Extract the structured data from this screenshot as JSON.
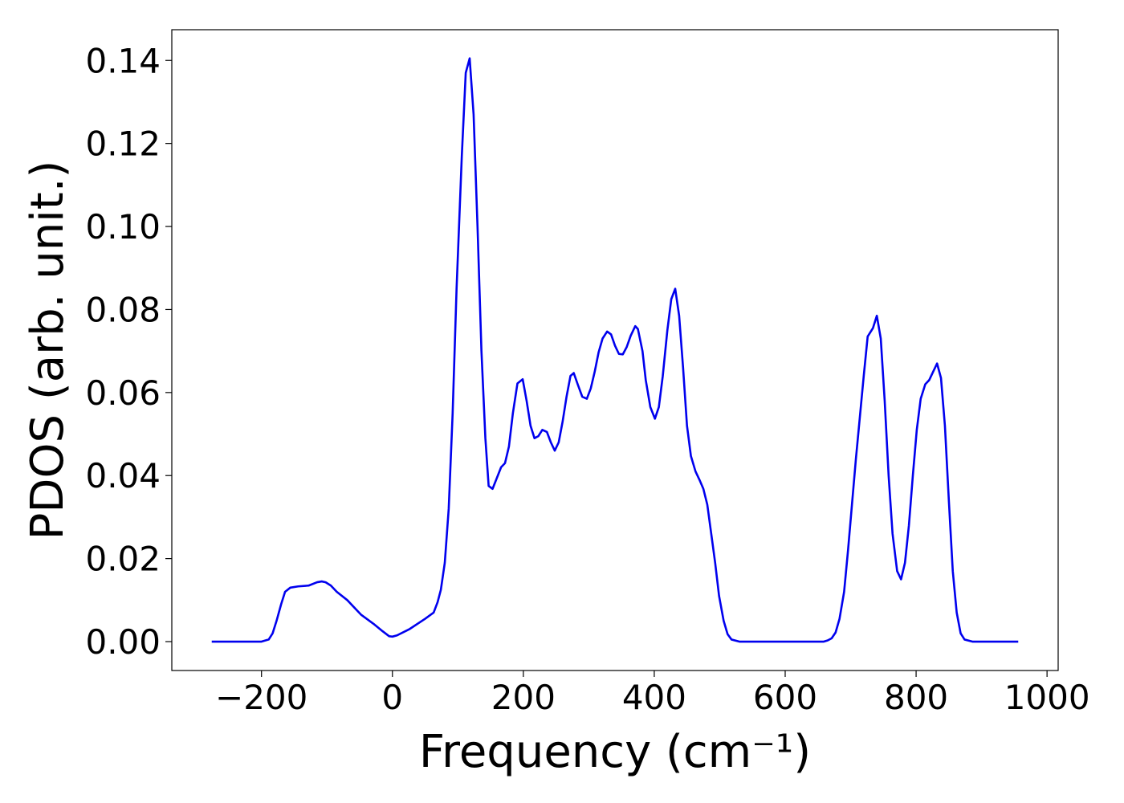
{
  "chart_data": {
    "type": "line",
    "xlabel": "Frequency (cm⁻¹)",
    "ylabel": "PDOS (arb. unit.)",
    "xlim": [
      -337,
      1017
    ],
    "ylim": [
      -0.00696,
      0.1474
    ],
    "xticks": [
      {
        "value": -200,
        "label": "−200"
      },
      0,
      200,
      400,
      600,
      800,
      1000
    ],
    "yticks": [
      {
        "value": 0,
        "label": "0.00"
      },
      {
        "value": 0.02,
        "label": "0.02"
      },
      {
        "value": 0.04,
        "label": "0.04"
      },
      {
        "value": 0.06,
        "label": "0.06"
      },
      {
        "value": 0.08,
        "label": "0.08"
      },
      {
        "value": 0.1,
        "label": "0.10"
      },
      {
        "value": 0.12,
        "label": "0.12"
      },
      {
        "value": 0.14,
        "label": "0.14"
      }
    ],
    "x": [
      -276,
      -200,
      -189,
      -183,
      -177,
      -170,
      -164,
      -156,
      -144,
      -128,
      -115,
      -108,
      -102,
      -94,
      -85,
      -69,
      -48,
      -29,
      -15,
      -5,
      0,
      7,
      26,
      50,
      63,
      69,
      74,
      80,
      86,
      92,
      98,
      106,
      112,
      118,
      124,
      130,
      136,
      142,
      147,
      153,
      161,
      166,
      172,
      178,
      184,
      191,
      199,
      205,
      211,
      217,
      223,
      229,
      236,
      242,
      248,
      254,
      260,
      266,
      272,
      277,
      283,
      290,
      297,
      303,
      309,
      315,
      321,
      328,
      334,
      340,
      346,
      352,
      358,
      364,
      371,
      375,
      382,
      387,
      394,
      401,
      407,
      413,
      420,
      426,
      432,
      438,
      444,
      450,
      456,
      463,
      469,
      475,
      481,
      487,
      493,
      499,
      506,
      512,
      518,
      530,
      659,
      665,
      671,
      677,
      683,
      690,
      696,
      702,
      708,
      714,
      720,
      726,
      734,
      740,
      746,
      752,
      758,
      764,
      771,
      777,
      783,
      789,
      795,
      801,
      807,
      814,
      820,
      826,
      832,
      838,
      844,
      850,
      856,
      862,
      868,
      874,
      886,
      956
    ],
    "series": [
      {
        "name": "PDOS",
        "color": "#0000ee",
        "values": [
          0,
          0,
          0.0005,
          0.002,
          0.005,
          0.009,
          0.012,
          0.013,
          0.0133,
          0.0135,
          0.0143,
          0.0145,
          0.0143,
          0.0135,
          0.012,
          0.01,
          0.0065,
          0.0043,
          0.0025,
          0.0013,
          0.0012,
          0.0015,
          0.003,
          0.0055,
          0.007,
          0.0095,
          0.0125,
          0.019,
          0.032,
          0.055,
          0.085,
          0.117,
          0.137,
          0.1405,
          0.127,
          0.1,
          0.07,
          0.049,
          0.0375,
          0.0368,
          0.04,
          0.042,
          0.043,
          0.047,
          0.055,
          0.0622,
          0.0632,
          0.058,
          0.052,
          0.049,
          0.0495,
          0.051,
          0.0505,
          0.048,
          0.046,
          0.048,
          0.053,
          0.059,
          0.064,
          0.0647,
          0.062,
          0.059,
          0.0585,
          0.061,
          0.065,
          0.0697,
          0.073,
          0.0747,
          0.074,
          0.0713,
          0.0693,
          0.0692,
          0.071,
          0.0737,
          0.076,
          0.0753,
          0.07,
          0.063,
          0.0565,
          0.0537,
          0.0565,
          0.064,
          0.075,
          0.0825,
          0.085,
          0.0785,
          0.066,
          0.052,
          0.0447,
          0.041,
          0.039,
          0.0368,
          0.033,
          0.026,
          0.019,
          0.011,
          0.005,
          0.0018,
          0.0005,
          0,
          0,
          0.0003,
          0.0008,
          0.0022,
          0.0055,
          0.012,
          0.022,
          0.033,
          0.044,
          0.054,
          0.064,
          0.0735,
          0.0755,
          0.0785,
          0.073,
          0.058,
          0.04,
          0.026,
          0.017,
          0.015,
          0.019,
          0.028,
          0.04,
          0.051,
          0.0585,
          0.062,
          0.063,
          0.065,
          0.067,
          0.0635,
          0.052,
          0.034,
          0.017,
          0.007,
          0.002,
          0.0005,
          0,
          0
        ]
      }
    ]
  }
}
